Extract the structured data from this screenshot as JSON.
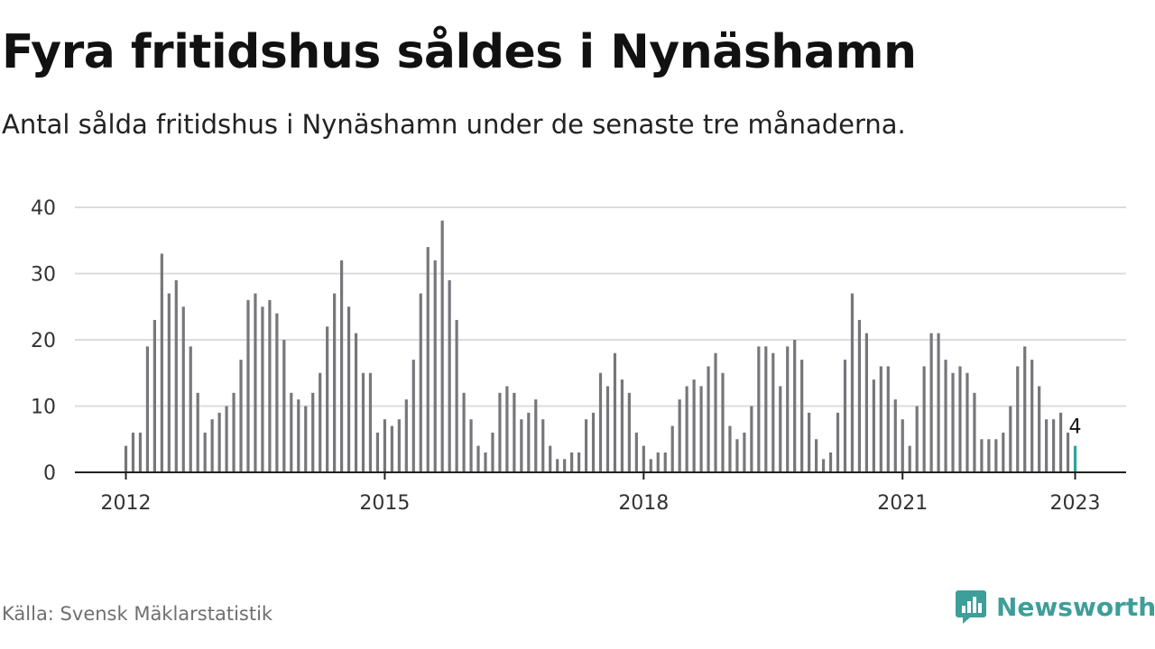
{
  "title": "Fyra fritidshus såldes i Nynäshamn",
  "subtitle": "Antal sålda fritidshus i Nynäshamn under de senaste tre månaderna.",
  "source": "Källa: Svensk Mäklarstatistik",
  "brand": "Newsworthy",
  "colors": {
    "bar": "#77767b",
    "highlight": "#2aa79b",
    "grid": "#dcdcdc",
    "axis": "#222222",
    "brand": "#3e9e99"
  },
  "chart_data": {
    "type": "bar",
    "title": "Fyra fritidshus såldes i Nynäshamn",
    "subtitle": "Antal sålda fritidshus i Nynäshamn under de senaste tre månaderna.",
    "xlabel": "",
    "ylabel": "",
    "ylim": [
      0,
      40
    ],
    "yticks": [
      0,
      10,
      20,
      30,
      40
    ],
    "xticks": [
      "2012",
      "2015",
      "2018",
      "2021",
      "2023"
    ],
    "grid": true,
    "legend": "none",
    "start": "2012-01",
    "end": "2023-01",
    "values": [
      4,
      6,
      6,
      19,
      23,
      33,
      27,
      29,
      25,
      19,
      12,
      6,
      8,
      9,
      10,
      12,
      17,
      26,
      27,
      25,
      26,
      24,
      20,
      12,
      11,
      10,
      12,
      15,
      22,
      27,
      32,
      25,
      21,
      15,
      15,
      6,
      8,
      7,
      8,
      11,
      17,
      27,
      34,
      32,
      38,
      29,
      23,
      12,
      8,
      4,
      3,
      6,
      12,
      13,
      12,
      8,
      9,
      11,
      8,
      4,
      2,
      2,
      3,
      3,
      8,
      9,
      15,
      13,
      18,
      14,
      12,
      6,
      4,
      2,
      3,
      3,
      7,
      11,
      13,
      14,
      13,
      16,
      18,
      15,
      7,
      5,
      6,
      10,
      19,
      19,
      18,
      13,
      19,
      20,
      17,
      9,
      5,
      2,
      3,
      9,
      17,
      27,
      23,
      21,
      14,
      16,
      16,
      11,
      8,
      4,
      10,
      16,
      21,
      21,
      17,
      15,
      16,
      15,
      12,
      5,
      5,
      5,
      6,
      10,
      16,
      19,
      17,
      13,
      8,
      8,
      9,
      6,
      4
    ],
    "annotations": [
      {
        "label": "4",
        "month": "2023-01",
        "value": 4
      }
    ]
  }
}
